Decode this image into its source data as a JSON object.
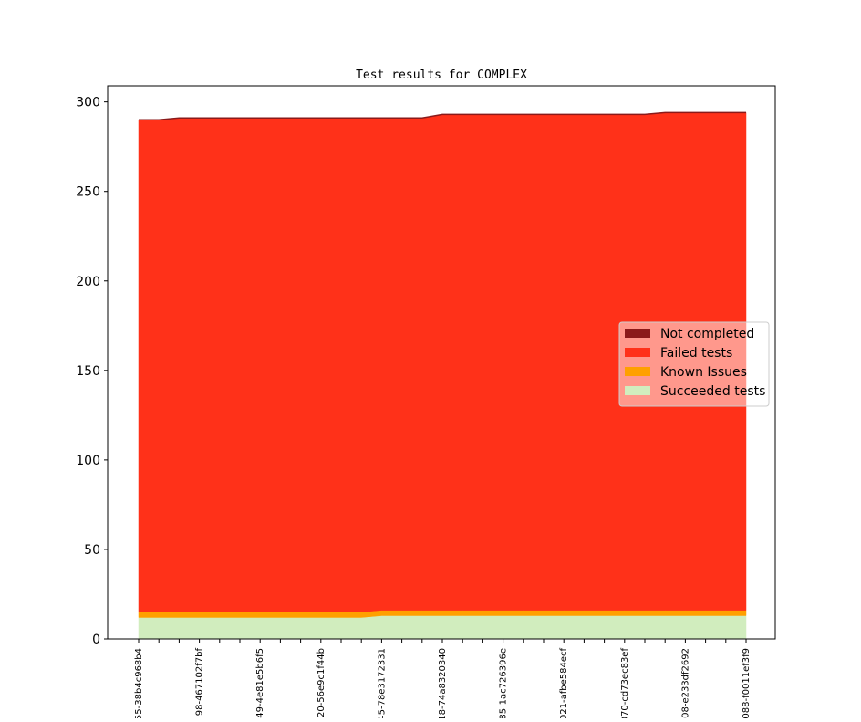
{
  "chart_data": {
    "type": "stacked_area",
    "title": "Test results for COMPLEX",
    "categories": [
      "55-38b4c968b4",
      null,
      null,
      "98-467102f7bf",
      null,
      null,
      "49-4e81e5b6f5",
      null,
      null,
      "20-56e9c1f44b",
      null,
      null,
      "45-78e3172331",
      null,
      null,
      "18-74a8320340",
      null,
      null,
      "85-1ac726396e",
      null,
      null,
      "021-afbe584ecf",
      null,
      null,
      "070-cd73ec83ef",
      null,
      null,
      "08-e233df2692",
      null,
      null,
      "088-f0011ef3f9"
    ],
    "series": [
      {
        "name": "Succeeded tests",
        "color": "#d1edbe",
        "values": [
          12,
          12,
          12,
          12,
          12,
          12,
          12,
          12,
          12,
          12,
          12,
          12,
          13,
          13,
          13,
          13,
          13,
          13,
          13,
          13,
          13,
          13,
          13,
          13,
          13,
          13,
          13,
          13,
          13,
          13,
          13
        ]
      },
      {
        "name": "Known Issues",
        "color": "#ffa000",
        "values": [
          3,
          3,
          3,
          3,
          3,
          3,
          3,
          3,
          3,
          3,
          3,
          3,
          3,
          3,
          3,
          3,
          3,
          3,
          3,
          3,
          3,
          3,
          3,
          3,
          3,
          3,
          3,
          3,
          3,
          3,
          3
        ]
      },
      {
        "name": "Failed tests",
        "color": "#ff3119",
        "values": [
          275,
          275,
          276,
          276,
          276,
          276,
          276,
          276,
          276,
          276,
          276,
          276,
          275,
          275,
          275,
          277,
          277,
          277,
          277,
          277,
          277,
          277,
          277,
          277,
          277,
          277,
          278,
          278,
          278,
          278,
          278
        ]
      },
      {
        "name": "Not completed",
        "color": "#8b1a1a",
        "values": [
          0,
          0,
          0,
          0,
          0,
          0,
          0,
          0,
          0,
          0,
          0,
          0,
          0,
          0,
          0,
          0,
          0,
          0,
          0,
          0,
          0,
          0,
          0,
          0,
          0,
          0,
          0,
          0,
          0,
          0,
          0
        ]
      }
    ],
    "ylim": [
      0,
      309
    ],
    "yticks": [
      0,
      50,
      100,
      150,
      200,
      250,
      300
    ],
    "legend": "center right"
  }
}
